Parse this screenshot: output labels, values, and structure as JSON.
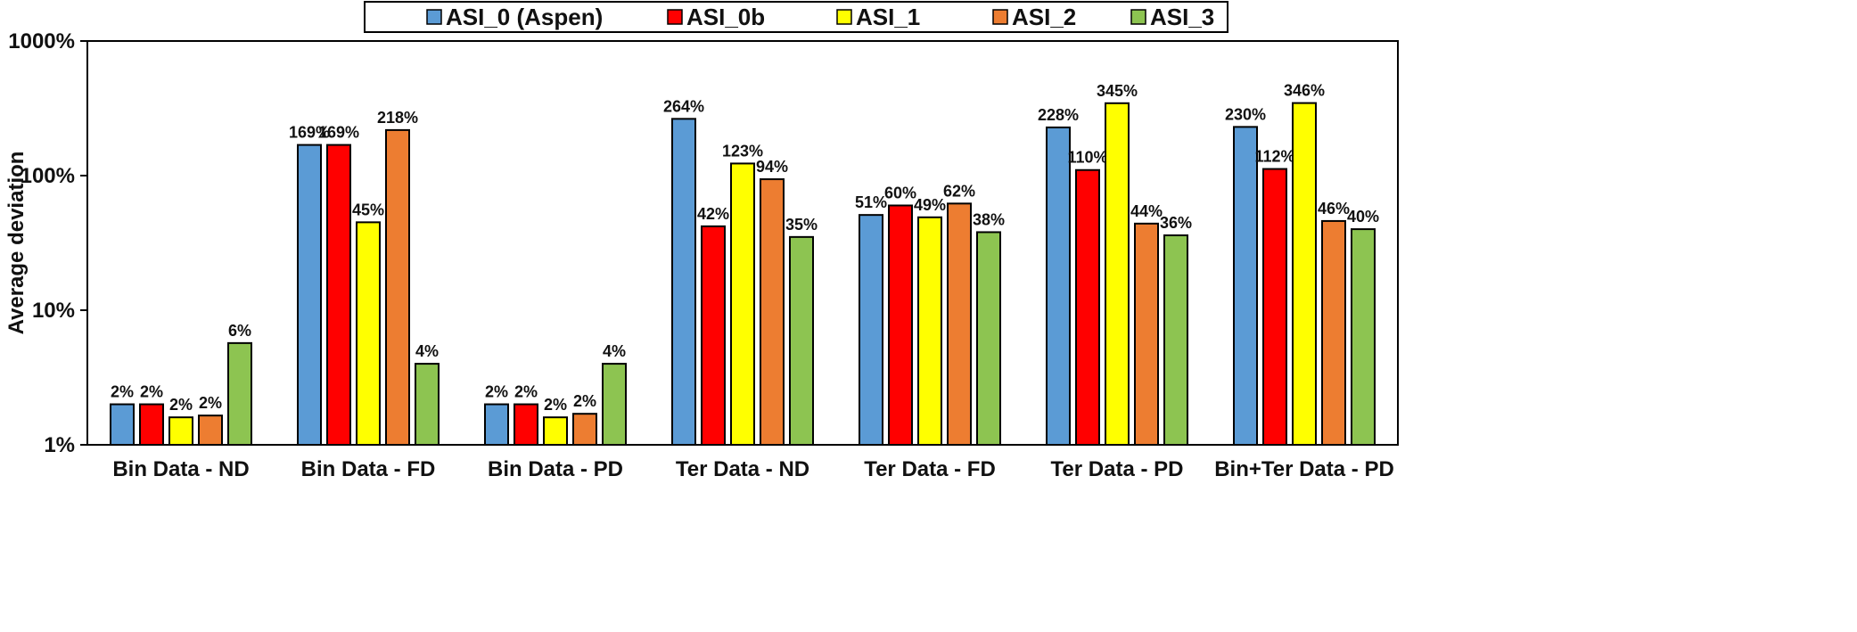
{
  "chart_data": {
    "type": "bar",
    "scale": "log",
    "ylabel": "Average deviation",
    "xlabel": "",
    "ylim": [
      1,
      1000
    ],
    "yticks": [
      {
        "value": 1,
        "label": "1%"
      },
      {
        "value": 10,
        "label": "10%"
      },
      {
        "value": 100,
        "label": "100%"
      },
      {
        "value": 1000,
        "label": "1000%"
      }
    ],
    "legend_position": "top-center",
    "categories": [
      "Bin Data - ND",
      "Bin Data - FD",
      "Bin Data - PD",
      "Ter Data - ND",
      "Ter Data - FD",
      "Ter Data - PD",
      "Bin+Ter Data - PD"
    ],
    "series": [
      {
        "name": "ASI_0 (Aspen)",
        "color": "#5b9bd5",
        "values": [
          2,
          169,
          2,
          264,
          51,
          228,
          230
        ],
        "labels": [
          "2%",
          "169%",
          "2%",
          "264%",
          "51%",
          "228%",
          "230%"
        ]
      },
      {
        "name": "ASI_0b",
        "color": "#ff0000",
        "values": [
          2,
          169,
          2,
          42,
          60,
          110,
          112
        ],
        "labels": [
          "2%",
          "169%",
          "2%",
          "42%",
          "60%",
          "110%",
          "112%"
        ]
      },
      {
        "name": "ASI_1",
        "color": "#ffff00",
        "values": [
          1.6,
          45,
          1.6,
          123,
          49,
          345,
          346
        ],
        "labels": [
          "2%",
          "45%",
          "2%",
          "123%",
          "49%",
          "345%",
          "346%"
        ]
      },
      {
        "name": "ASI_2",
        "color": "#ed7d31",
        "values": [
          1.65,
          218,
          1.7,
          94,
          62,
          44,
          46
        ],
        "labels": [
          "2%",
          "218%",
          "2%",
          "94%",
          "62%",
          "44%",
          "46%"
        ]
      },
      {
        "name": "ASI_3",
        "color": "#8dc451",
        "values": [
          5.7,
          4,
          4,
          35,
          38,
          36,
          40
        ],
        "labels": [
          "6%",
          "4%",
          "4%",
          "35%",
          "38%",
          "36%",
          "40%"
        ]
      }
    ]
  }
}
